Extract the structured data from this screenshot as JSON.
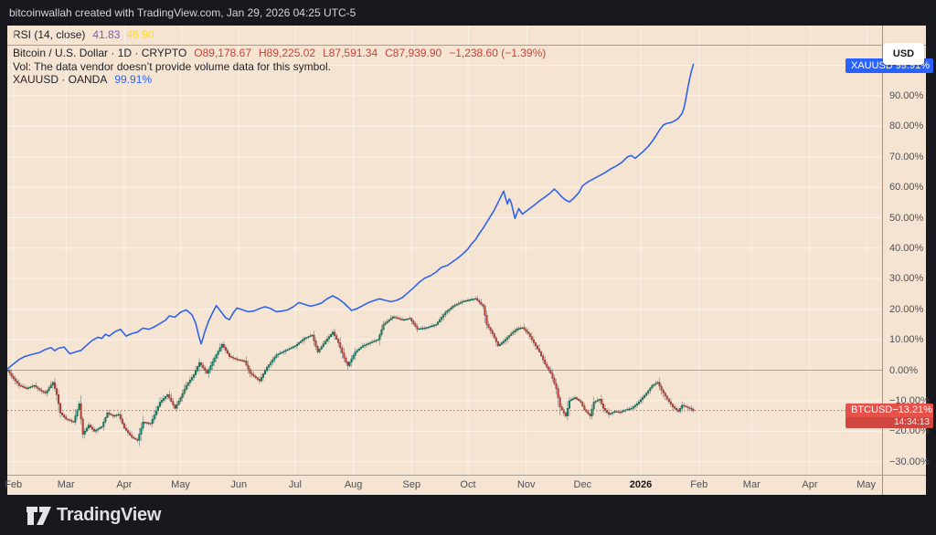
{
  "frame": {
    "attribution": "bitcoinwallah created with TradingView.com, Jan 29, 2026 04:25 UTC-5",
    "brand": "TradingView"
  },
  "rsi": {
    "label": "RSI (14, close)",
    "value1": "41.83",
    "value2": "46.90"
  },
  "legend": {
    "title": "Bitcoin / U.S. Dollar · 1D · CRYPTO",
    "ohlc": {
      "o": "O89,178.67",
      "h": "H89,225.02",
      "l": "L87,591.34",
      "c": "C87,939.90",
      "change": "−1,238.60 (−1.39%)"
    },
    "vol_note": "Vol: The data vendor doesn’t provide volume data for this symbol.",
    "compare_symbol": "XAUUSD · OANDA",
    "compare_value": "99.91%"
  },
  "axis": {
    "currency_button": "USD",
    "xau_flag": {
      "symbol": "XAUUSD",
      "value": "99.91%"
    },
    "btc_flag": {
      "symbol": "BTCUSD",
      "value": "−13.21%",
      "countdown": "14:34:13"
    },
    "y_ticks": [
      {
        "pct": 90,
        "label": "90.00%"
      },
      {
        "pct": 80,
        "label": "80.00%"
      },
      {
        "pct": 70,
        "label": "70.00%"
      },
      {
        "pct": 60,
        "label": "60.00%"
      },
      {
        "pct": 50,
        "label": "50.00%"
      },
      {
        "pct": 40,
        "label": "40.00%"
      },
      {
        "pct": 30,
        "label": "30.00%"
      },
      {
        "pct": 20,
        "label": "20.00%"
      },
      {
        "pct": 10,
        "label": "10.00%"
      },
      {
        "pct": 0,
        "label": "0.00%"
      },
      {
        "pct": -10,
        "label": "−10.00%"
      },
      {
        "pct": -20,
        "label": "−20.00%"
      },
      {
        "pct": -30,
        "label": "−30.00%"
      }
    ],
    "x_ticks": [
      {
        "label": "Feb",
        "day": 3
      },
      {
        "label": "Mar",
        "day": 31
      },
      {
        "label": "Apr",
        "day": 62
      },
      {
        "label": "May",
        "day": 92
      },
      {
        "label": "Jun",
        "day": 123
      },
      {
        "label": "Jul",
        "day": 153
      },
      {
        "label": "Aug",
        "day": 184
      },
      {
        "label": "Sep",
        "day": 215
      },
      {
        "label": "Oct",
        "day": 245
      },
      {
        "label": "Nov",
        "day": 276
      },
      {
        "label": "Dec",
        "day": 306
      },
      {
        "label": "2026",
        "day": 337,
        "bold": true
      },
      {
        "label": "Feb",
        "day": 368
      },
      {
        "label": "Mar",
        "day": 396
      },
      {
        "label": "Apr",
        "day": 427
      },
      {
        "label": "May",
        "day": 457
      }
    ]
  },
  "chart_data": {
    "type": "mixed",
    "unit": "percent-change",
    "ylim": [
      -34,
      106
    ],
    "grid_step_pct": 10,
    "x_start": "Jan 29, 2025",
    "x_end_visible": "May 2026",
    "series": [
      {
        "name": "BTCUSD",
        "type": "candlestick",
        "last_pct": -13.21,
        "close_anchors": [
          [
            0,
            0
          ],
          [
            2,
            -2
          ],
          [
            6,
            -5
          ],
          [
            10,
            -6
          ],
          [
            14,
            -5
          ],
          [
            17,
            -6.5
          ],
          [
            20,
            -7.5
          ],
          [
            24,
            -4
          ],
          [
            26,
            -8
          ],
          [
            28,
            -14
          ],
          [
            31,
            -16
          ],
          [
            35,
            -17
          ],
          [
            38,
            -11
          ],
          [
            40,
            -21
          ],
          [
            43,
            -18
          ],
          [
            46,
            -20
          ],
          [
            50,
            -18.5
          ],
          [
            53,
            -14
          ],
          [
            56,
            -15
          ],
          [
            59,
            -14.5
          ],
          [
            62,
            -19
          ],
          [
            66,
            -22
          ],
          [
            69,
            -23
          ],
          [
            72,
            -17
          ],
          [
            76,
            -17.5
          ],
          [
            81,
            -10.5
          ],
          [
            85,
            -8
          ],
          [
            89,
            -12.5
          ],
          [
            92,
            -9
          ],
          [
            95,
            -5
          ],
          [
            99,
            -1.5
          ],
          [
            102,
            2.5
          ],
          [
            106,
            -1
          ],
          [
            110,
            4
          ],
          [
            114,
            8.5
          ],
          [
            118,
            4.5
          ],
          [
            122,
            3.5
          ],
          [
            126,
            3
          ],
          [
            129,
            -1
          ],
          [
            134,
            -3.5
          ],
          [
            138,
            1
          ],
          [
            143,
            5
          ],
          [
            148,
            6.5
          ],
          [
            153,
            8
          ],
          [
            158,
            10.5
          ],
          [
            162,
            11.5
          ],
          [
            165,
            6
          ],
          [
            169,
            9.5
          ],
          [
            173,
            12.5
          ],
          [
            176,
            9
          ],
          [
            179,
            4
          ],
          [
            181,
            1.5
          ],
          [
            185,
            6
          ],
          [
            189,
            8
          ],
          [
            193,
            9
          ],
          [
            197,
            10
          ],
          [
            200,
            15
          ],
          [
            205,
            17.5
          ],
          [
            210,
            16.5
          ],
          [
            214,
            17
          ],
          [
            218,
            13.5
          ],
          [
            223,
            14
          ],
          [
            228,
            15
          ],
          [
            233,
            19
          ],
          [
            237,
            21
          ],
          [
            242,
            22.5
          ],
          [
            245,
            23
          ],
          [
            249,
            23.5
          ],
          [
            253,
            21
          ],
          [
            255,
            15
          ],
          [
            258,
            12
          ],
          [
            261,
            8
          ],
          [
            264,
            9.5
          ],
          [
            268,
            12
          ],
          [
            271,
            13.5
          ],
          [
            274,
            14
          ],
          [
            277,
            12
          ],
          [
            280,
            9
          ],
          [
            283,
            6
          ],
          [
            286,
            2
          ],
          [
            289,
            -1
          ],
          [
            292,
            -6
          ],
          [
            294,
            -12
          ],
          [
            297,
            -15
          ],
          [
            299,
            -10
          ],
          [
            302,
            -9
          ],
          [
            305,
            -10.5
          ],
          [
            307,
            -13
          ],
          [
            310,
            -15
          ],
          [
            312,
            -10.5
          ],
          [
            315,
            -9.5
          ],
          [
            317,
            -12.5
          ],
          [
            320,
            -14.5
          ],
          [
            323,
            -13.5
          ],
          [
            326,
            -13.8
          ],
          [
            329,
            -13
          ],
          [
            332,
            -12.5
          ],
          [
            335,
            -11
          ],
          [
            338,
            -9
          ],
          [
            340,
            -7.5
          ],
          [
            343,
            -5
          ],
          [
            346,
            -4
          ],
          [
            348,
            -6.5
          ],
          [
            351,
            -9.5
          ],
          [
            354,
            -12
          ],
          [
            357,
            -13.5
          ],
          [
            359,
            -11.5
          ],
          [
            361,
            -12
          ],
          [
            363,
            -12.5
          ],
          [
            365,
            -13.21
          ]
        ]
      },
      {
        "name": "XAUUSD",
        "type": "line",
        "last_pct": 99.91,
        "points": [
          [
            0,
            0.5
          ],
          [
            3,
            2
          ],
          [
            6,
            3.5
          ],
          [
            9,
            4.5
          ],
          [
            13,
            5.2
          ],
          [
            17,
            5.8
          ],
          [
            20,
            6.8
          ],
          [
            23,
            7.4
          ],
          [
            25,
            6.4
          ],
          [
            27,
            7.2
          ],
          [
            30,
            7.6
          ],
          [
            33,
            5.4
          ],
          [
            36,
            6
          ],
          [
            39,
            6.5
          ],
          [
            42,
            8.2
          ],
          [
            45,
            9.8
          ],
          [
            48,
            10.8
          ],
          [
            50,
            10.4
          ],
          [
            52,
            11.8
          ],
          [
            54,
            11.2
          ],
          [
            57,
            12.6
          ],
          [
            60,
            13.4
          ],
          [
            63,
            11.2
          ],
          [
            66,
            12
          ],
          [
            69,
            12.5
          ],
          [
            72,
            13.8
          ],
          [
            75,
            13.4
          ],
          [
            78,
            14.2
          ],
          [
            81,
            15.3
          ],
          [
            84,
            16.4
          ],
          [
            86,
            17.8
          ],
          [
            89,
            17.4
          ],
          [
            92,
            19
          ],
          [
            95,
            19.8
          ],
          [
            98,
            18.2
          ],
          [
            100,
            15.5
          ],
          [
            102,
            10.5
          ],
          [
            103,
            8.6
          ],
          [
            105,
            12.8
          ],
          [
            107,
            16.2
          ],
          [
            109,
            18.8
          ],
          [
            111,
            21.2
          ],
          [
            113,
            19.6
          ],
          [
            116,
            17.2
          ],
          [
            118,
            16.6
          ],
          [
            120,
            18.8
          ],
          [
            122,
            20.4
          ],
          [
            125,
            19.8
          ],
          [
            128,
            19.2
          ],
          [
            131,
            19.4
          ],
          [
            134,
            20.2
          ],
          [
            137,
            20.8
          ],
          [
            140,
            20.2
          ],
          [
            143,
            19.2
          ],
          [
            146,
            19.4
          ],
          [
            149,
            19.8
          ],
          [
            152,
            20.8
          ],
          [
            155,
            22.2
          ],
          [
            158,
            21.6
          ],
          [
            161,
            21
          ],
          [
            164,
            21.4
          ],
          [
            167,
            22
          ],
          [
            170,
            23.4
          ],
          [
            173,
            24.4
          ],
          [
            176,
            23.4
          ],
          [
            179,
            22
          ],
          [
            181,
            20.8
          ],
          [
            183,
            19.6
          ],
          [
            186,
            20.2
          ],
          [
            189,
            21.2
          ],
          [
            192,
            22.2
          ],
          [
            195,
            22.8
          ],
          [
            198,
            23.4
          ],
          [
            201,
            22.9
          ],
          [
            204,
            22.5
          ],
          [
            207,
            22.9
          ],
          [
            210,
            23.8
          ],
          [
            213,
            25.4
          ],
          [
            216,
            27
          ],
          [
            219,
            28.8
          ],
          [
            222,
            30.2
          ],
          [
            225,
            31
          ],
          [
            228,
            32.2
          ],
          [
            231,
            33.8
          ],
          [
            234,
            34.3
          ],
          [
            236,
            35.2
          ],
          [
            239,
            36.5
          ],
          [
            242,
            38
          ],
          [
            245,
            39.8
          ],
          [
            247,
            41.5
          ],
          [
            249,
            42.8
          ],
          [
            251,
            44.8
          ],
          [
            253,
            46.5
          ],
          [
            255,
            48.5
          ],
          [
            257,
            50.5
          ],
          [
            259,
            52.5
          ],
          [
            261,
            55
          ],
          [
            263,
            57.5
          ],
          [
            264,
            58.7
          ],
          [
            265,
            56.5
          ],
          [
            266,
            54.5
          ],
          [
            267,
            56.2
          ],
          [
            268,
            55
          ],
          [
            270,
            49.8
          ],
          [
            272,
            53
          ],
          [
            274,
            51.2
          ],
          [
            277,
            52.6
          ],
          [
            280,
            54
          ],
          [
            283,
            55.5
          ],
          [
            286,
            56.8
          ],
          [
            289,
            58.2
          ],
          [
            291,
            59.4
          ],
          [
            293,
            58.2
          ],
          [
            295,
            56.8
          ],
          [
            297,
            55.8
          ],
          [
            299,
            55.2
          ],
          [
            301,
            56.2
          ],
          [
            304,
            58.2
          ],
          [
            306,
            60.5
          ],
          [
            309,
            61.8
          ],
          [
            312,
            62.8
          ],
          [
            315,
            63.8
          ],
          [
            318,
            64.8
          ],
          [
            321,
            66
          ],
          [
            324,
            67
          ],
          [
            327,
            68.2
          ],
          [
            330,
            70
          ],
          [
            332,
            70.4
          ],
          [
            334,
            69.5
          ],
          [
            336,
            70.5
          ],
          [
            338,
            71.6
          ],
          [
            341,
            73.4
          ],
          [
            343,
            75
          ],
          [
            345,
            76.8
          ],
          [
            347,
            78.8
          ],
          [
            349,
            80.4
          ],
          [
            351,
            81
          ],
          [
            353,
            81.2
          ],
          [
            355,
            81.8
          ],
          [
            357,
            82.6
          ],
          [
            359,
            84.2
          ],
          [
            360,
            86
          ],
          [
            361,
            89
          ],
          [
            362,
            92.5
          ],
          [
            363,
            95.5
          ],
          [
            364,
            98.2
          ],
          [
            365,
            100.3
          ]
        ]
      }
    ],
    "price_line": {
      "value": -13.21,
      "style": "dotted"
    }
  },
  "colors": {
    "background": "#f5e4d1",
    "frame": "#17191f",
    "line_blue": "#2e63ea",
    "flag_blue": "#2962ff",
    "flag_red": "#e8504a",
    "candle_up": "#0d8a68",
    "candle_up_border": "#07604a",
    "candle_down": "#c2443b",
    "candle_down_border": "#8f332c",
    "wick": "#73767e",
    "ohlc_red": "#ca4036",
    "rsi_purple": "#7e57c2",
    "rsi_yellow": "#fdd835",
    "dotted_line": "#e0514a"
  }
}
